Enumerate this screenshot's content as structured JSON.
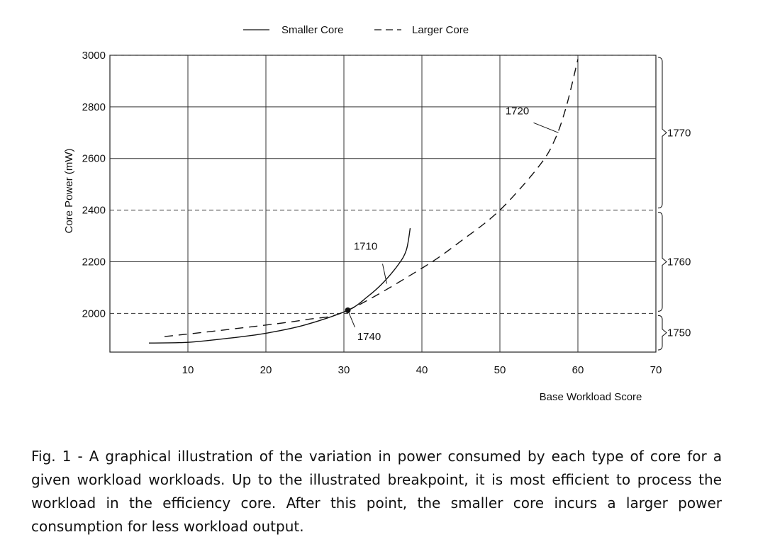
{
  "chart_data": {
    "type": "line",
    "xlabel": "Base Workload Score",
    "ylabel": "Core Power (mW)",
    "xlim": [
      0,
      70
    ],
    "ylim": [
      1850,
      3000
    ],
    "x_ticks": [
      "10",
      "20",
      "30",
      "40",
      "50",
      "60",
      "70"
    ],
    "y_ticks": [
      "2000",
      "2200",
      "2400",
      "2600",
      "2800",
      "3000"
    ],
    "grid": true,
    "legend_position": "top-center",
    "series": [
      {
        "name": "Smaller Core",
        "style": "solid",
        "x": [
          5,
          10,
          15,
          20,
          25,
          30.5,
          33,
          35,
          37,
          38,
          38.5
        ],
        "y": [
          1885,
          1888,
          1903,
          1923,
          1955,
          2012,
          2064,
          2118,
          2190,
          2245,
          2330
        ]
      },
      {
        "name": "Larger Core",
        "style": "dashed",
        "x": [
          7,
          15,
          25,
          30.5,
          40,
          45,
          50,
          55,
          57,
          58.5,
          60
        ],
        "y": [
          1910,
          1937,
          1975,
          2012,
          2175,
          2280,
          2400,
          2570,
          2670,
          2800,
          2985
        ]
      }
    ],
    "breakpoint": {
      "x": 30.5,
      "y": 2012
    },
    "annotations": [
      {
        "text": "1710",
        "target_x": 35.5,
        "target_y": 2115
      },
      {
        "text": "1720",
        "target_x": 57.5,
        "target_y": 2700
      },
      {
        "text": "1740",
        "target_x": 30.5,
        "target_y": 2012
      }
    ],
    "bands": [
      {
        "label": "1770",
        "from": 2400,
        "to": 3000
      },
      {
        "label": "1760",
        "from": 2000,
        "to": 2400
      },
      {
        "label": "1750",
        "from": 1850,
        "to": 2000
      }
    ],
    "dashed_gridlines_y": [
      2000,
      2400,
      3000
    ]
  },
  "caption": "Fig. 1 - A graphical illustration of the variation in power consumed by each type of core for a given workload workloads. Up to the illustrated breakpoint, it is most efficient to process the workload in the efficiency core. After this point, the smaller core incurs a larger power consumption for less workload output."
}
